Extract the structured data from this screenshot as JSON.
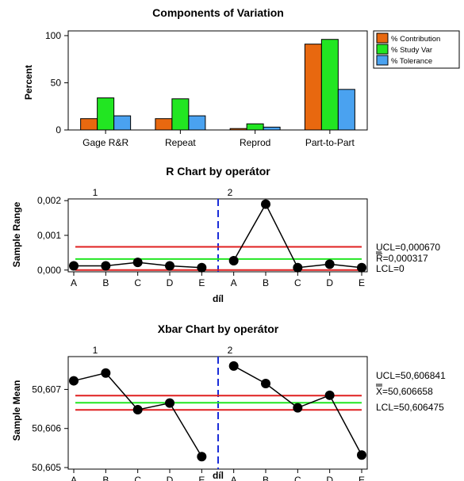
{
  "chart_data": [
    {
      "type": "bar",
      "title": "Components of Variation",
      "xlabel": "",
      "ylabel": "Percent",
      "ylim": [
        0,
        105
      ],
      "yticks": [
        0,
        50,
        100
      ],
      "categories": [
        "Gage R&R",
        "Repeat",
        "Reprod",
        "Part-to-Part"
      ],
      "series": [
        {
          "name": "% Contribution",
          "color": "#e8680f",
          "values": [
            12,
            12,
            1.5,
            91
          ]
        },
        {
          "name": "% Study Var",
          "color": "#22e622",
          "values": [
            34,
            33,
            6.5,
            96
          ]
        },
        {
          "name": "% Tolerance",
          "color": "#4aa2f0",
          "values": [
            15,
            15,
            3,
            43
          ]
        }
      ],
      "legend": "top-right"
    },
    {
      "type": "line",
      "title": "R Chart by operátor",
      "xlabel": "díl",
      "ylabel": "Sample Range",
      "ylim": [
        -5e-05,
        0.00205
      ],
      "yticks": [
        0,
        0.001,
        0.002
      ],
      "ytick_labels": [
        "0,000",
        "0,001",
        "0,002"
      ],
      "x": [
        "A",
        "B",
        "C",
        "D",
        "E",
        "A",
        "B",
        "C",
        "D",
        "E"
      ],
      "groups": [
        "1",
        "2"
      ],
      "values": [
        0.00012,
        0.00012,
        0.00022,
        0.00012,
        7e-05,
        0.00027,
        0.0019,
        7e-05,
        0.00017,
        7e-05
      ],
      "limits": [
        {
          "label": "UCL=0,000670",
          "value": 0.00067,
          "color": "#e02020"
        },
        {
          "label": "R=0,000317",
          "value": 0.000317,
          "color": "#22e622"
        },
        {
          "label": "LCL=0",
          "value": 0,
          "color": "#e02020"
        }
      ]
    },
    {
      "type": "line",
      "title": "Xbar Chart by operátor",
      "xlabel": "díl",
      "ylabel": "Sample Mean",
      "ylim": [
        50.60496,
        50.60784
      ],
      "yticks": [
        50.605,
        50.606,
        50.607
      ],
      "ytick_labels": [
        "50,605",
        "50,606",
        "50,607"
      ],
      "x": [
        "A",
        "B",
        "C",
        "D",
        "E",
        "A",
        "B",
        "C",
        "D",
        "E"
      ],
      "groups": [
        "1",
        "2"
      ],
      "values": [
        50.60722,
        50.60742,
        50.60648,
        50.60665,
        50.60528,
        50.6076,
        50.60715,
        50.60653,
        50.60685,
        50.60532
      ],
      "limits": [
        {
          "label": "UCL=50,606841",
          "value": 50.606841,
          "color": "#e02020"
        },
        {
          "label": "X=50,606658",
          "value": 50.606658,
          "color": "#22e622"
        },
        {
          "label": "LCL=50,606475",
          "value": 50.606475,
          "color": "#e02020"
        }
      ]
    }
  ]
}
